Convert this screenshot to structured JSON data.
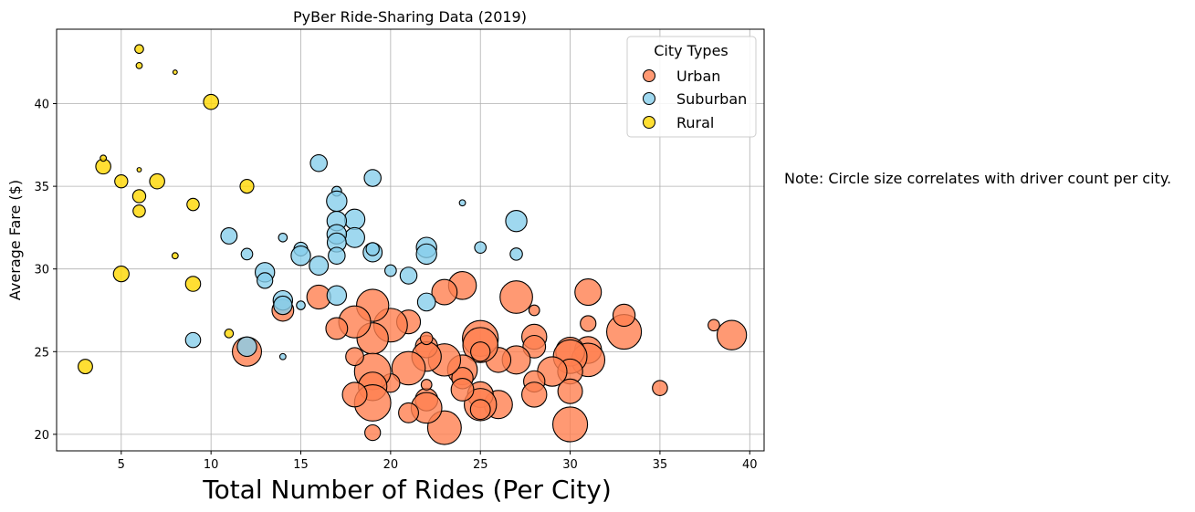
{
  "chart_data": {
    "type": "scatter",
    "title": "PyBer Ride-Sharing Data (2019)",
    "xlabel": "Total Number of Rides (Per City)",
    "ylabel": "Average Fare ($)",
    "xlim": [
      1.4,
      40.8
    ],
    "ylim": [
      19,
      44.5
    ],
    "xticks": [
      5,
      10,
      15,
      20,
      25,
      30,
      35,
      40
    ],
    "yticks": [
      20,
      25,
      30,
      35,
      40
    ],
    "grid": true,
    "size_encodes": "driver count per city",
    "legend": {
      "title": "City Types",
      "position": "top-right"
    },
    "series": [
      {
        "name": "Urban",
        "color": "#FF7F50",
        "points": [
          [
            39,
            26.0,
            46
          ],
          [
            35,
            22.8,
            12
          ],
          [
            38,
            26.6,
            7
          ],
          [
            33,
            26.2,
            64
          ],
          [
            33,
            27.2,
            26
          ],
          [
            31,
            28.6,
            37
          ],
          [
            31,
            26.7,
            13
          ],
          [
            31,
            25.1,
            38
          ],
          [
            31,
            24.5,
            59
          ],
          [
            30,
            25.0,
            44
          ],
          [
            30,
            24.7,
            60
          ],
          [
            30,
            23.8,
            33
          ],
          [
            30,
            22.6,
            32
          ],
          [
            30,
            20.6,
            64
          ],
          [
            29,
            23.8,
            46
          ],
          [
            28,
            25.9,
            33
          ],
          [
            28,
            25.3,
            27
          ],
          [
            28,
            23.2,
            24
          ],
          [
            28,
            22.4,
            33
          ],
          [
            28,
            27.5,
            6
          ],
          [
            27,
            28.3,
            56
          ],
          [
            27,
            24.5,
            42
          ],
          [
            26,
            24.5,
            33
          ],
          [
            26,
            21.8,
            42
          ],
          [
            25,
            25.8,
            68
          ],
          [
            25,
            25.4,
            65
          ],
          [
            25,
            22.4,
            35
          ],
          [
            25,
            21.8,
            55
          ],
          [
            25,
            21.5,
            21
          ],
          [
            25,
            25.0,
            20
          ],
          [
            24,
            29.0,
            41
          ],
          [
            24,
            23.9,
            47
          ],
          [
            24,
            23.4,
            24
          ],
          [
            24,
            22.7,
            27
          ],
          [
            23,
            28.6,
            34
          ],
          [
            23,
            24.5,
            55
          ],
          [
            23,
            20.4,
            60
          ],
          [
            22,
            25.3,
            26
          ],
          [
            22,
            24.7,
            46
          ],
          [
            22,
            22.1,
            27
          ],
          [
            22,
            21.6,
            50
          ],
          [
            22,
            25.8,
            8
          ],
          [
            22,
            23.0,
            6
          ],
          [
            21,
            26.8,
            30
          ],
          [
            21,
            24.0,
            59
          ],
          [
            21,
            21.3,
            21
          ],
          [
            20,
            26.6,
            60
          ],
          [
            20,
            23.1,
            18
          ],
          [
            19,
            27.8,
            55
          ],
          [
            19,
            25.8,
            52
          ],
          [
            19,
            23.8,
            70
          ],
          [
            19,
            22.9,
            43
          ],
          [
            19,
            21.9,
            70
          ],
          [
            19,
            20.1,
            13
          ],
          [
            18,
            26.8,
            54
          ],
          [
            18,
            24.7,
            17
          ],
          [
            18,
            22.4,
            32
          ],
          [
            17,
            26.4,
            25
          ],
          [
            16,
            28.3,
            30
          ],
          [
            14,
            27.5,
            25
          ],
          [
            12,
            25.0,
            45
          ]
        ]
      },
      {
        "name": "Suburban",
        "color": "#87CEEB",
        "points": [
          [
            27,
            32.9,
            24
          ],
          [
            27,
            30.9,
            8
          ],
          [
            25,
            31.3,
            7
          ],
          [
            24,
            34.0,
            2
          ],
          [
            22,
            31.3,
            22
          ],
          [
            22,
            30.9,
            22
          ],
          [
            22,
            28.0,
            17
          ],
          [
            21,
            29.6,
            15
          ],
          [
            20,
            29.9,
            7
          ],
          [
            19,
            35.5,
            15
          ],
          [
            19,
            31.0,
            19
          ],
          [
            19,
            31.2,
            9
          ],
          [
            18,
            33.0,
            22
          ],
          [
            18,
            31.9,
            21
          ],
          [
            17,
            34.7,
            5
          ],
          [
            17,
            34.1,
            22
          ],
          [
            17,
            32.9,
            20
          ],
          [
            17,
            32.1,
            20
          ],
          [
            17,
            31.6,
            19
          ],
          [
            17,
            30.8,
            15
          ],
          [
            17,
            28.4,
            20
          ],
          [
            16,
            36.4,
            15
          ],
          [
            16,
            30.2,
            19
          ],
          [
            15,
            31.2,
            10
          ],
          [
            15,
            30.8,
            20
          ],
          [
            15,
            27.8,
            4
          ],
          [
            14,
            31.9,
            4
          ],
          [
            14,
            28.1,
            20
          ],
          [
            14,
            27.8,
            18
          ],
          [
            14,
            24.7,
            2
          ],
          [
            13,
            29.8,
            20
          ],
          [
            13,
            29.3,
            13
          ],
          [
            12,
            25.3,
            20
          ],
          [
            12,
            30.9,
            7
          ],
          [
            11,
            32.0,
            14
          ],
          [
            9,
            25.7,
            12
          ]
        ]
      },
      {
        "name": "Rural",
        "color": "#FFD700",
        "points": [
          [
            3,
            24.1,
            11
          ],
          [
            4,
            36.2,
            12
          ],
          [
            4,
            36.7,
            2
          ],
          [
            5,
            35.3,
            9
          ],
          [
            5,
            29.7,
            13
          ],
          [
            6,
            43.3,
            4
          ],
          [
            6,
            42.3,
            2
          ],
          [
            6,
            36.0,
            1
          ],
          [
            6,
            34.4,
            9
          ],
          [
            6,
            33.5,
            8
          ],
          [
            7,
            35.3,
            12
          ],
          [
            8,
            41.9,
            1
          ],
          [
            8,
            30.8,
            2
          ],
          [
            9,
            33.9,
            8
          ],
          [
            9,
            29.1,
            12
          ],
          [
            10,
            40.1,
            12
          ],
          [
            11,
            26.1,
            4
          ],
          [
            12,
            35.0,
            10
          ]
        ]
      }
    ]
  },
  "note": "Note: Circle size correlates with driver count per city."
}
